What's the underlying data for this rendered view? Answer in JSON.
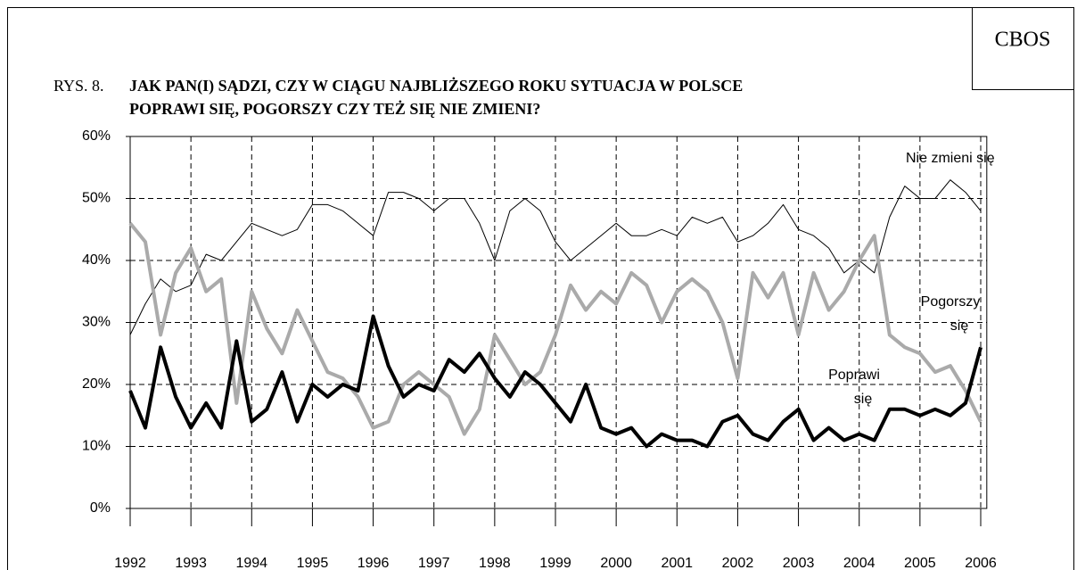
{
  "chart_data": {
    "type": "line",
    "source": "CBOS",
    "figure_label": "RYS. 8.",
    "title_lines": [
      "JAK PAN(I) SĄDZI, CZY W CIĄGU NAJBLIŻSZEGO ROKU SYTUACJA W POLSCE",
      "POPRAWI SIĘ, POGORSZY CZY TEŻ SIĘ NIE ZMIENI?"
    ],
    "x": [
      1992,
      1992.25,
      1992.5,
      1992.75,
      1993,
      1993.25,
      1993.5,
      1993.75,
      1994,
      1994.25,
      1994.5,
      1994.75,
      1995,
      1995.25,
      1995.5,
      1995.75,
      1996,
      1996.25,
      1996.5,
      1996.75,
      1997,
      1997.25,
      1997.5,
      1997.75,
      1998,
      1998.25,
      1998.5,
      1998.75,
      1999,
      1999.25,
      1999.5,
      1999.75,
      2000,
      2000.25,
      2000.5,
      2000.75,
      2001,
      2001.25,
      2001.5,
      2001.75,
      2002,
      2002.25,
      2002.5,
      2002.75,
      2003,
      2003.25,
      2003.5,
      2003.75,
      2004,
      2004.25,
      2004.5,
      2004.75,
      2005,
      2005.25,
      2005.5,
      2005.75,
      2006
    ],
    "series": [
      {
        "name": "Nie zmieni się",
        "color": "#000000",
        "width": 1,
        "values": [
          28,
          33,
          37,
          35,
          36,
          41,
          40,
          43,
          46,
          45,
          44,
          45,
          49,
          49,
          48,
          46,
          44,
          51,
          51,
          50,
          48,
          50,
          50,
          46,
          40,
          48,
          50,
          48,
          43,
          40,
          42,
          44,
          46,
          44,
          44,
          45,
          44,
          47,
          46,
          47,
          43,
          44,
          46,
          49,
          45,
          44,
          42,
          38,
          40,
          38,
          47,
          52,
          50,
          50,
          53,
          51,
          48
        ]
      },
      {
        "name": "Pogorszy się",
        "color": "#aaaaaa",
        "width": 4,
        "values": [
          46,
          43,
          28,
          38,
          42,
          35,
          37,
          17,
          35,
          29,
          25,
          32,
          27,
          22,
          21,
          18,
          13,
          14,
          20,
          22,
          20,
          18,
          12,
          16,
          28,
          24,
          20,
          22,
          28,
          36,
          32,
          35,
          33,
          38,
          36,
          30,
          35,
          37,
          35,
          30,
          21,
          38,
          34,
          38,
          28,
          38,
          32,
          35,
          40,
          44,
          28,
          26,
          25,
          22,
          23,
          19,
          14
        ]
      },
      {
        "name": "Poprawi się",
        "color": "#000000",
        "width": 4,
        "values": [
          19,
          13,
          26,
          18,
          13,
          17,
          13,
          27,
          14,
          16,
          22,
          14,
          20,
          18,
          20,
          19,
          31,
          23,
          18,
          20,
          19,
          24,
          22,
          25,
          21,
          18,
          22,
          20,
          17,
          14,
          20,
          13,
          12,
          13,
          10,
          12,
          11,
          11,
          10,
          14,
          15,
          12,
          11,
          14,
          16,
          11,
          13,
          11,
          12,
          11,
          16,
          16,
          15,
          16,
          15,
          17,
          26
        ]
      }
    ],
    "xlim": [
      1992,
      2006.1
    ],
    "xticks": [
      1992,
      1993,
      1994,
      1995,
      1996,
      1997,
      1998,
      1999,
      2000,
      2001,
      2002,
      2003,
      2004,
      2005,
      2006
    ],
    "ylim": [
      0,
      60
    ],
    "yticks": [
      {
        "value": 0,
        "label": "0%"
      },
      {
        "value": 10,
        "label": "10%"
      },
      {
        "value": 20,
        "label": "20%"
      },
      {
        "value": 30,
        "label": "30%"
      },
      {
        "value": 40,
        "label": "40%"
      },
      {
        "value": 50,
        "label": "50%"
      },
      {
        "value": 60,
        "label": "60%"
      }
    ],
    "grid": true
  }
}
